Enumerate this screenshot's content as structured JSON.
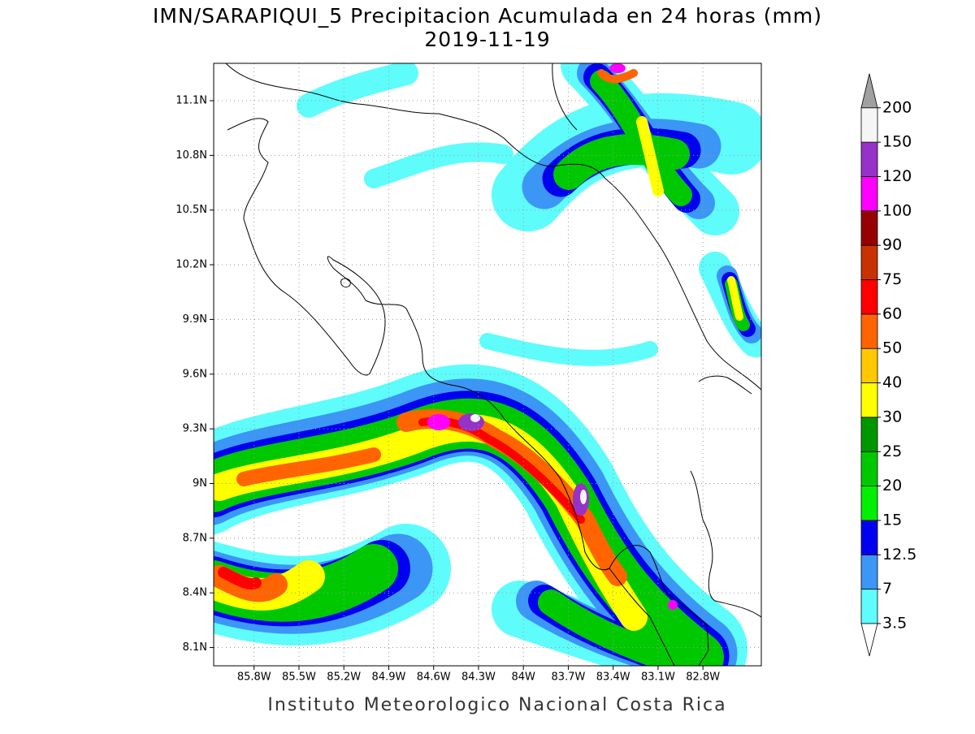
{
  "title": [
    "IMN/SARAPIQUI_5 Precipitacion Acumulada en 24 horas (mm)",
    "2019-11-19"
  ],
  "map": {
    "xlim": [
      -86.07,
      -82.41
    ],
    "ylim": [
      8.0,
      11.305
    ],
    "grid": true,
    "xticks": [
      {
        "value": -85.8,
        "label": "85.8W"
      },
      {
        "value": -85.5,
        "label": "85.5W"
      },
      {
        "value": -85.2,
        "label": "85.2W"
      },
      {
        "value": -84.9,
        "label": "84.9W"
      },
      {
        "value": -84.6,
        "label": "84.6W"
      },
      {
        "value": -84.3,
        "label": "84.3W"
      },
      {
        "value": -84.0,
        "label": "84W"
      },
      {
        "value": -83.7,
        "label": "83.7W"
      },
      {
        "value": -83.4,
        "label": "83.4W"
      },
      {
        "value": -83.1,
        "label": "83.1W"
      },
      {
        "value": -82.8,
        "label": "82.8W"
      }
    ],
    "yticks": [
      {
        "value": 8.1,
        "label": "8.1N"
      },
      {
        "value": 8.4,
        "label": "8.4N"
      },
      {
        "value": 8.7,
        "label": "8.7N"
      },
      {
        "value": 9.0,
        "label": "9N"
      },
      {
        "value": 9.3,
        "label": "9.3N"
      },
      {
        "value": 9.6,
        "label": "9.6N"
      },
      {
        "value": 9.9,
        "label": "9.9N"
      },
      {
        "value": 10.2,
        "label": "10.2N"
      },
      {
        "value": 10.5,
        "label": "10.5N"
      },
      {
        "value": 10.8,
        "label": "10.8N"
      },
      {
        "value": 11.1,
        "label": "11.1N"
      }
    ]
  },
  "colorbar": {
    "levels": [
      3.5,
      7,
      12.5,
      15,
      20,
      25,
      30,
      40,
      50,
      60,
      75,
      90,
      100,
      120,
      150,
      200
    ],
    "colors": [
      "#5ffcfc",
      "#3c96f5",
      "#0000f0",
      "#00f000",
      "#00c800",
      "#009600",
      "#ffff00",
      "#ffc800",
      "#ff6400",
      "#ff0000",
      "#c83200",
      "#960000",
      "#ff00ff",
      "#9632c8",
      "#f5f5f5"
    ],
    "under_color": "#ffffff",
    "over_color": "#a0a0a0"
  },
  "footer": "Instituto Meteorologico Nacional Costa Rica"
}
